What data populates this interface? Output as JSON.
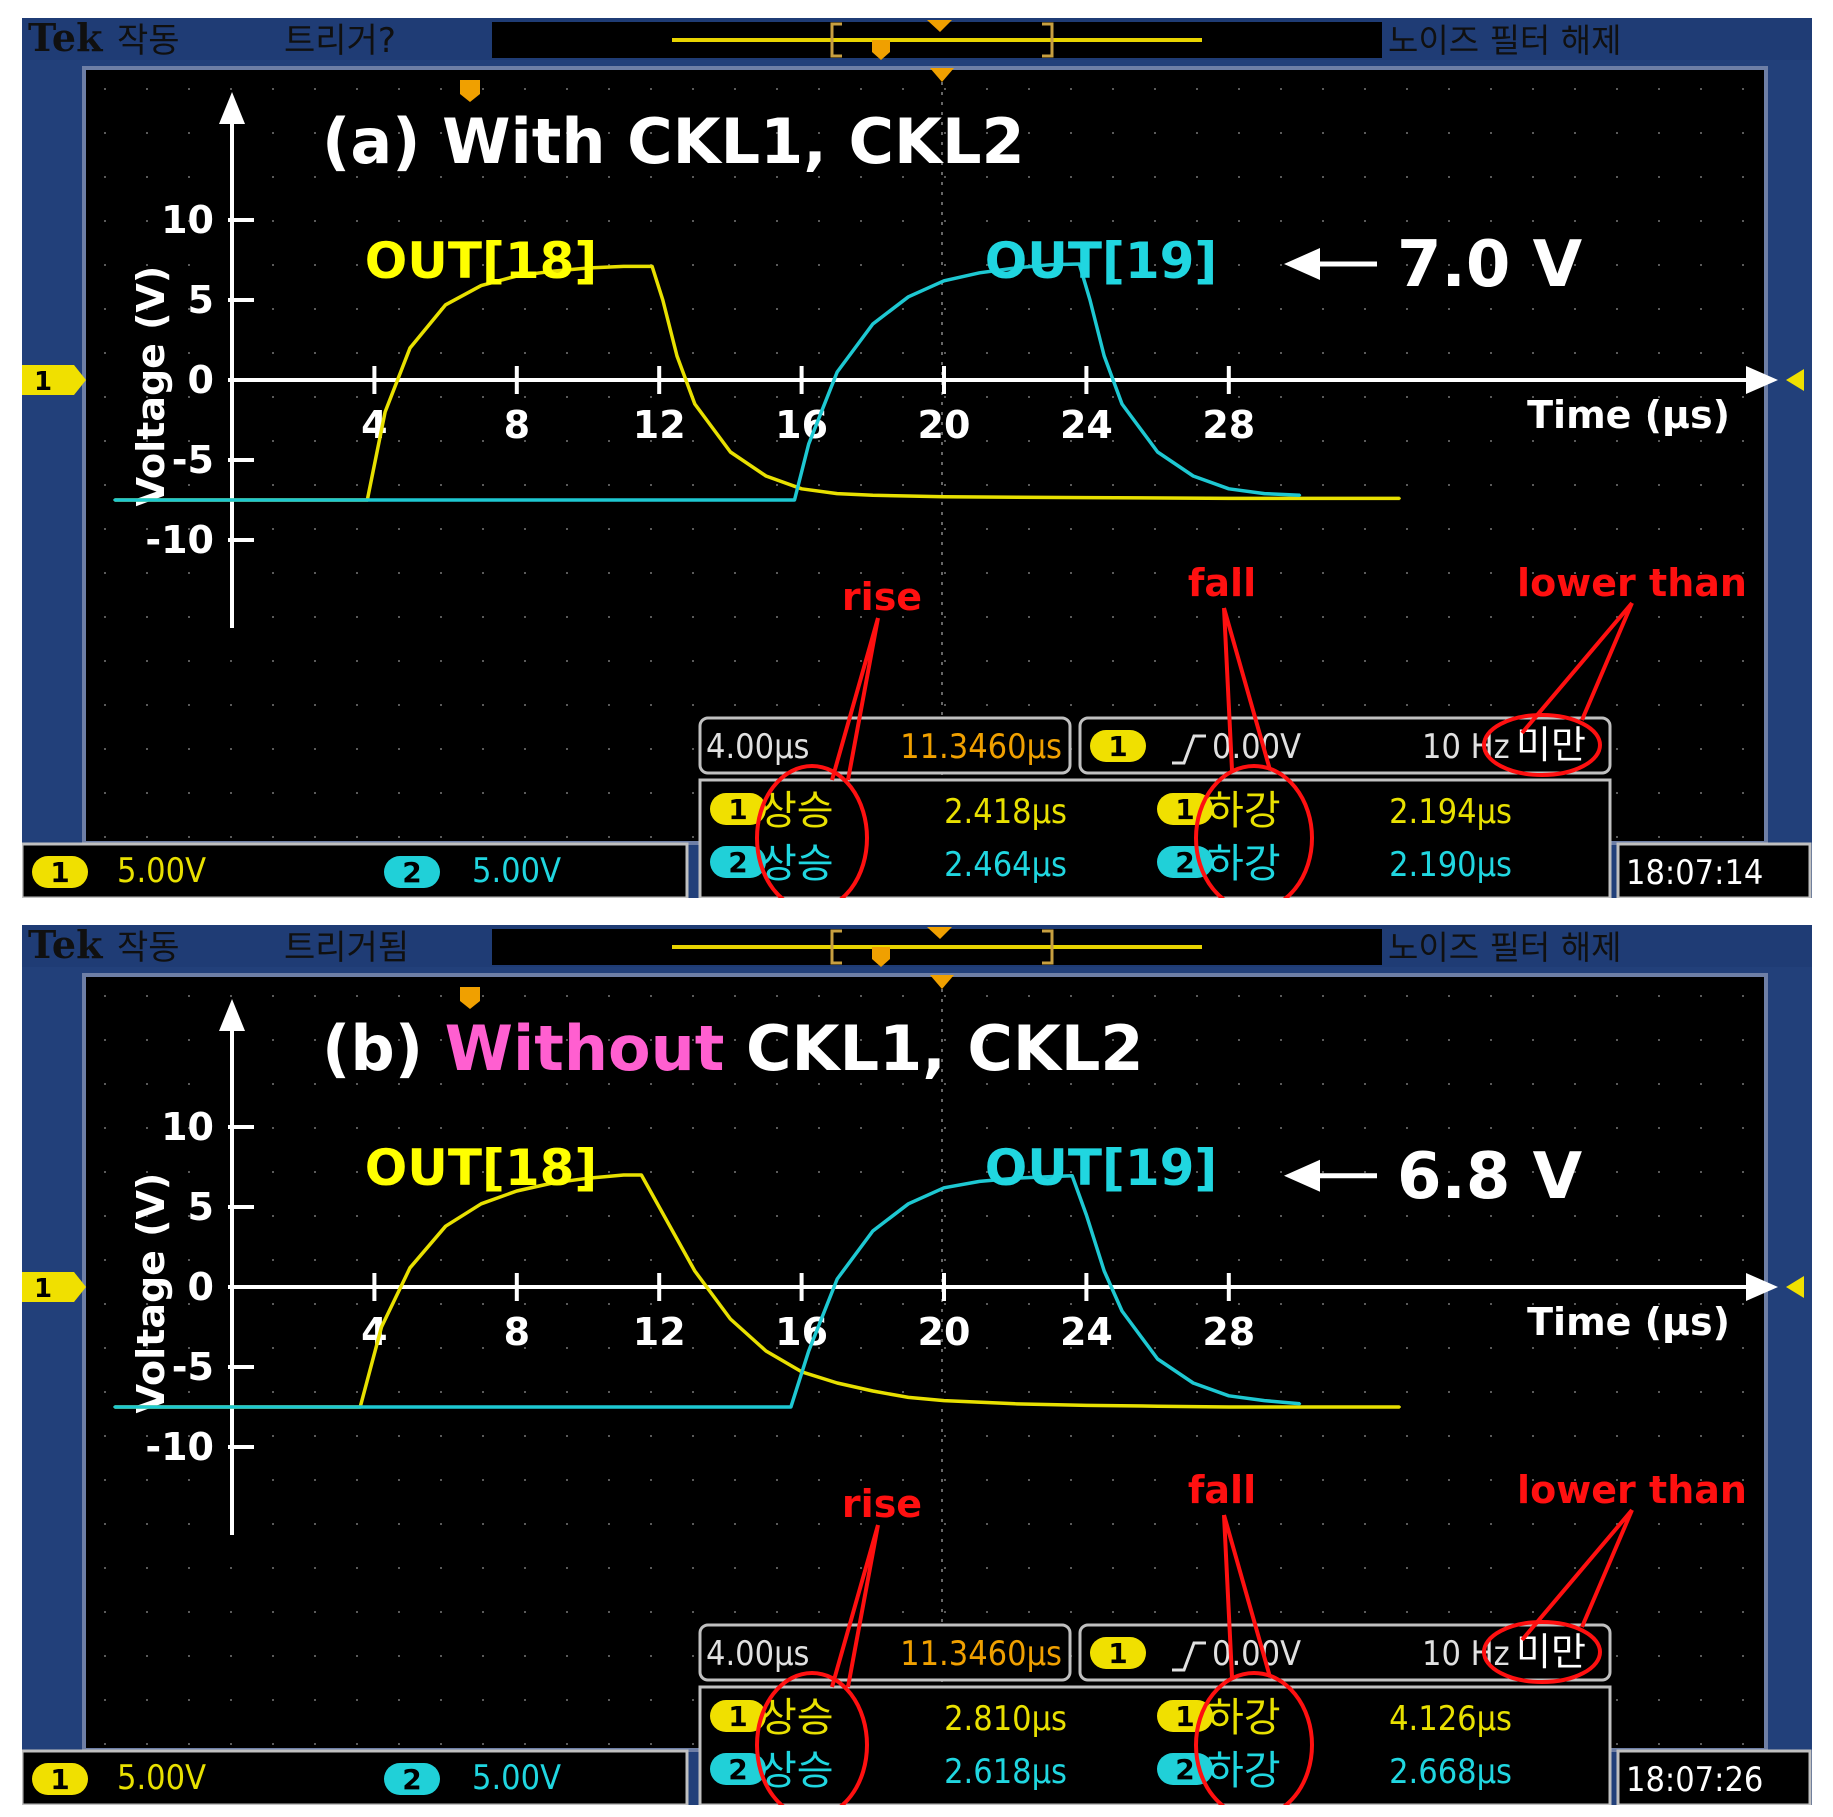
{
  "panels": [
    {
      "id": "a",
      "status": {
        "brand": "Tek",
        "run": "작동",
        "trigger": "트리거?",
        "filter": "노이즈 필터 해제"
      },
      "title": [
        {
          "text": "(a) ",
          "color": "#ffffff"
        },
        {
          "text": "With CKL1, CKL2",
          "color": "#ffffff"
        }
      ],
      "chart_data": {
        "type": "line",
        "xlabel": "Time  (μs)",
        "ylabel": "Voltage (V)",
        "xlim": [
          0,
          36
        ],
        "ylim": [
          -16,
          18
        ],
        "xticks": [
          4,
          8,
          12,
          16,
          20,
          24,
          28
        ],
        "yticks": [
          10,
          5,
          0,
          -5,
          -10
        ],
        "series": [
          {
            "name": "OUT[18]",
            "color": "#e8e000",
            "x": [
              -3.3,
              3.8,
              4.3,
              5.0,
              6.0,
              7.0,
              8.0,
              9.0,
              10.0,
              11.0,
              11.8,
              12.1,
              12.5,
              13.0,
              14.0,
              15.0,
              16.0,
              17.0,
              18.0,
              20.0,
              24.0,
              28.0,
              32.8
            ],
            "y": [
              -7.5,
              -7.5,
              -2.0,
              2.0,
              4.7,
              5.9,
              6.5,
              6.8,
              7.0,
              7.1,
              7.1,
              5.0,
              1.5,
              -1.5,
              -4.5,
              -6.0,
              -6.8,
              -7.1,
              -7.2,
              -7.3,
              -7.35,
              -7.4,
              -7.4
            ]
          },
          {
            "name": "OUT[19]",
            "color": "#1ec8d2",
            "x": [
              -3.3,
              4.0,
              8.0,
              12.0,
              15.8,
              16.2,
              17.0,
              18.0,
              19.0,
              20.0,
              21.0,
              22.0,
              23.0,
              23.8,
              24.1,
              24.5,
              25.0,
              26.0,
              27.0,
              28.0,
              29.0,
              30.0
            ],
            "y": [
              -7.5,
              -7.5,
              -7.5,
              -7.5,
              -7.5,
              -4.0,
              0.5,
              3.5,
              5.2,
              6.2,
              6.7,
              7.0,
              7.2,
              7.25,
              5.0,
              1.5,
              -1.5,
              -4.5,
              -6.0,
              -6.8,
              -7.1,
              -7.2
            ]
          }
        ],
        "series_labels": [
          {
            "text": "OUT[18]",
            "color": "#ffff00"
          },
          {
            "text": "OUT[19]",
            "color": "#20d6e0"
          }
        ],
        "annotations": [
          {
            "text": "7.0 V",
            "color": "#ffffff"
          }
        ]
      },
      "readout": {
        "horizontal_scale": "4.00μs",
        "position": "11.3460μs",
        "trigger_channel": "1",
        "trigger_level": "0.00V",
        "freq": "10 Hz",
        "freq_suffix": "미만",
        "rise_label": "상승",
        "fall_label": "하강",
        "ch1_rise": "2.418μs",
        "ch1_fall": "2.194μs",
        "ch2_rise": "2.464μs",
        "ch2_fall": "2.190μs",
        "ch1_scale": "5.00V",
        "ch2_scale": "5.00V",
        "ch1_badge": "1",
        "ch2_badge": "2",
        "time": "18:07:14"
      },
      "red_notes": {
        "rise": "rise",
        "fall": "fall",
        "lower": "lower than"
      }
    },
    {
      "id": "b",
      "status": {
        "brand": "Tek",
        "run": "작동",
        "trigger": "트리거됨",
        "filter": "노이즈 필터 해제"
      },
      "title": [
        {
          "text": "(b) ",
          "color": "#ffffff"
        },
        {
          "text": "Without",
          "color": "#ff5fd0"
        },
        {
          "text": " CKL1, CKL2",
          "color": "#ffffff"
        }
      ],
      "chart_data": {
        "type": "line",
        "xlabel": "Time  (μs)",
        "ylabel": "Voltage (V)",
        "xlim": [
          0,
          36
        ],
        "ylim": [
          -16,
          18
        ],
        "xticks": [
          4,
          8,
          12,
          16,
          20,
          24,
          28
        ],
        "yticks": [
          10,
          5,
          0,
          -5,
          -10
        ],
        "series": [
          {
            "name": "OUT[18]",
            "color": "#e8e000",
            "x": [
              -3.3,
              3.6,
              4.2,
              5.0,
              6.0,
              7.0,
              8.0,
              9.0,
              10.0,
              11.0,
              11.5,
              12.0,
              13.0,
              14.0,
              15.0,
              16.0,
              17.0,
              18.0,
              19.0,
              20.0,
              22.0,
              24.0,
              26.0,
              28.0,
              32.8
            ],
            "y": [
              -7.5,
              -7.5,
              -2.5,
              1.2,
              3.8,
              5.2,
              6.0,
              6.5,
              6.8,
              7.0,
              7.0,
              5.0,
              1.0,
              -2.0,
              -4.0,
              -5.3,
              -6.0,
              -6.5,
              -6.9,
              -7.1,
              -7.3,
              -7.4,
              -7.45,
              -7.5,
              -7.5
            ]
          },
          {
            "name": "OUT[19]",
            "color": "#1ec8d2",
            "x": [
              -3.3,
              4.0,
              8.0,
              12.0,
              15.7,
              16.2,
              17.0,
              18.0,
              19.0,
              20.0,
              21.0,
              22.0,
              23.0,
              23.6,
              24.0,
              24.5,
              25.0,
              26.0,
              27.0,
              28.0,
              29.0,
              30.0
            ],
            "y": [
              -7.5,
              -7.5,
              -7.5,
              -7.5,
              -7.5,
              -4.0,
              0.5,
              3.5,
              5.2,
              6.2,
              6.6,
              6.8,
              6.9,
              6.95,
              4.5,
              1.0,
              -1.5,
              -4.5,
              -6.0,
              -6.8,
              -7.1,
              -7.3
            ]
          }
        ],
        "series_labels": [
          {
            "text": "OUT[18]",
            "color": "#ffff00"
          },
          {
            "text": "OUT[19]",
            "color": "#20d6e0"
          }
        ],
        "annotations": [
          {
            "text": "6.8 V",
            "color": "#ffffff"
          }
        ]
      },
      "readout": {
        "horizontal_scale": "4.00μs",
        "position": "11.3460μs",
        "trigger_channel": "1",
        "trigger_level": "0.00V",
        "freq": "10 Hz",
        "freq_suffix": "미만",
        "rise_label": "상승",
        "fall_label": "하강",
        "ch1_rise": "2.810μs",
        "ch1_fall": "4.126μs",
        "ch2_rise": "2.618μs",
        "ch2_fall": "2.668μs",
        "ch1_scale": "5.00V",
        "ch2_scale": "5.00V",
        "ch1_badge": "1",
        "ch2_badge": "2",
        "time": "18:07:26"
      },
      "red_notes": {
        "rise": "rise",
        "fall": "fall",
        "lower": "lower than"
      }
    }
  ]
}
